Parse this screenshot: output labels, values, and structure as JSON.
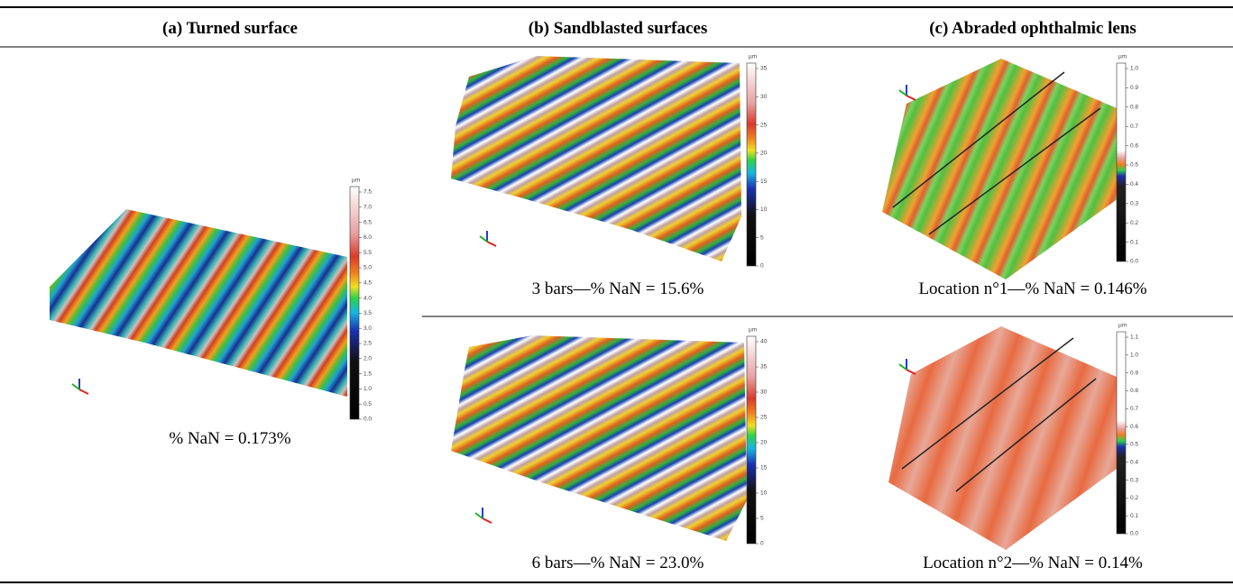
{
  "columns": [
    {
      "heading": "(a) Turned surface",
      "images": [
        {
          "caption": "% NaN = 0.173%",
          "colorbar": {
            "unit": "µm",
            "ticks": [
              "0.0",
              "0.5",
              "1.0",
              "1.5",
              "2.0",
              "2.5",
              "3.0",
              "3.5",
              "4.0",
              "4.5",
              "5.0",
              "5.5",
              "6.0",
              "6.5",
              "7.0",
              "7.5"
            ]
          }
        }
      ]
    },
    {
      "heading": "(b) Sandblasted surfaces",
      "images": [
        {
          "caption": "3 bars—% NaN = 15.6%",
          "colorbar": {
            "unit": "µm",
            "ticks": [
              "0",
              "5",
              "10",
              "15",
              "20",
              "25",
              "30",
              "35"
            ]
          }
        },
        {
          "caption": "6 bars—% NaN = 23.0%",
          "colorbar": {
            "unit": "µm",
            "ticks": [
              "0",
              "5",
              "10",
              "15",
              "20",
              "25",
              "30",
              "35",
              "40"
            ]
          }
        }
      ]
    },
    {
      "heading": "(c) Abraded ophthalmic lens",
      "images": [
        {
          "caption": "Location n°1—% NaN = 0.146%",
          "colorbar": {
            "unit": "µm",
            "ticks": [
              "0.0",
              "0.1",
              "0.2",
              "0.3",
              "0.4",
              "0.5",
              "0.6",
              "0.7",
              "0.8",
              "0.9",
              "1.0"
            ]
          }
        },
        {
          "caption": "Location n°2—% NaN = 0.14%",
          "colorbar": {
            "unit": "µm",
            "ticks": [
              "0.0",
              "0.1",
              "0.2",
              "0.3",
              "0.4",
              "0.5",
              "0.6",
              "0.7",
              "0.8",
              "0.9",
              "1.0",
              "1.1"
            ]
          }
        }
      ]
    }
  ]
}
